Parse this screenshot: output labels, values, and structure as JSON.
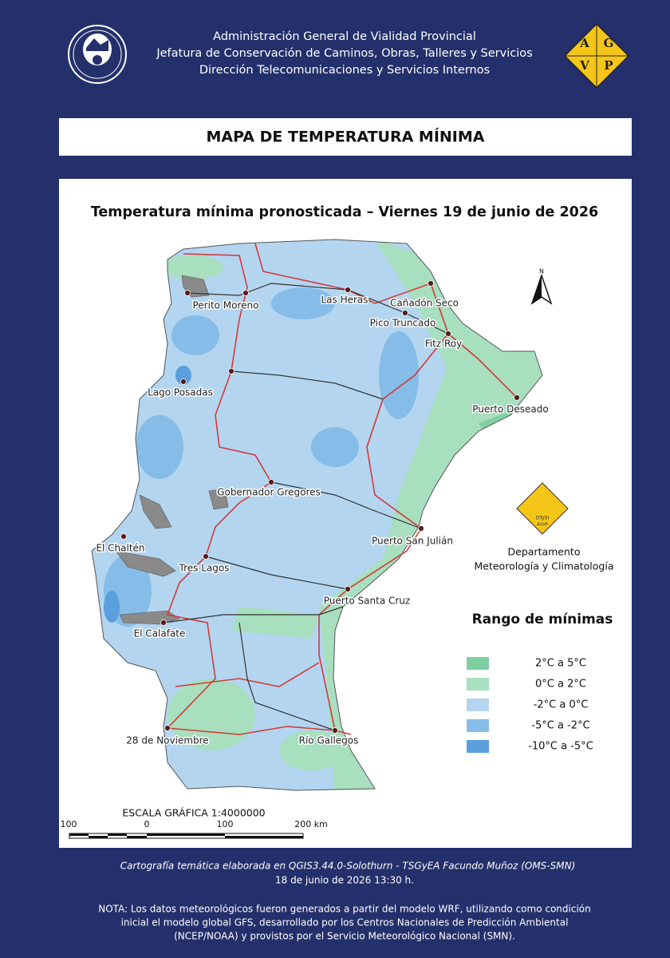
{
  "header": {
    "lines": [
      "Administración General de Vialidad Provincial",
      "Jefatura de Conservación de Caminos, Obras, Talleres y Servicios",
      "Dirección Telecomunicaciones y Servicios Internos"
    ],
    "logo_letters": [
      "A",
      "G",
      "V",
      "P"
    ]
  },
  "title": "MAPA DE TEMPERATURA MÍNIMA",
  "map": {
    "subtitle": "Temperatura mínima pronosticada – Viernes 19 de junio de 2026",
    "cities": [
      "Perito Moreno",
      "Las Heras",
      "Cañadón Seco",
      "Pico Truncado",
      "Fitz Roy",
      "Lago Posadas",
      "Puerto Deseado",
      "Gobernador Gregores",
      "Puerto San Julián",
      "El Chaltén",
      "Tres Lagos",
      "Puerto Santa Cruz",
      "El Calafate",
      "28 de Noviembre",
      "Río Gallegos"
    ],
    "north": "N",
    "department": {
      "logo_lines": [
        "DTySI",
        "AGVP"
      ],
      "lines": [
        "Departamento",
        "Meteorología y Climatología"
      ]
    },
    "legend": {
      "title": "Rango  de mínimas",
      "items": [
        {
          "label": "2°C a 5°C",
          "color": "#7dcfa0"
        },
        {
          "label": "0°C a 2°C",
          "color": "#a8dfbe"
        },
        {
          "label": "-2°C a 0°C",
          "color": "#b3d5f0"
        },
        {
          "label": "-5°C a -2°C",
          "color": "#86bde8"
        },
        {
          "label": "-10°C a -5°C",
          "color": "#5a9fde"
        }
      ]
    },
    "scale": {
      "title": "ESCALA GRÁFICA 1:4000000",
      "labels": [
        "100",
        "0",
        "100",
        "200 km"
      ]
    }
  },
  "footer": {
    "credits": [
      "Cartografía temática elaborada en QGIS3.44.0-Solothurn - TSGyEA Facundo Muñoz (OMS-SMN)",
      "18 de junio de 2026 13:30 h."
    ],
    "note": [
      "NOTA: Los datos meteorológicos fueron generados a partir del modelo WRF, utilizando como condición",
      "inicial el modelo global GFS, desarrollado por los Centros Nacionales de Predicción Ambiental",
      "(NCEP/NOAA) y provistos por el Servicio Meteorológico Nacional (SMN)."
    ]
  }
}
